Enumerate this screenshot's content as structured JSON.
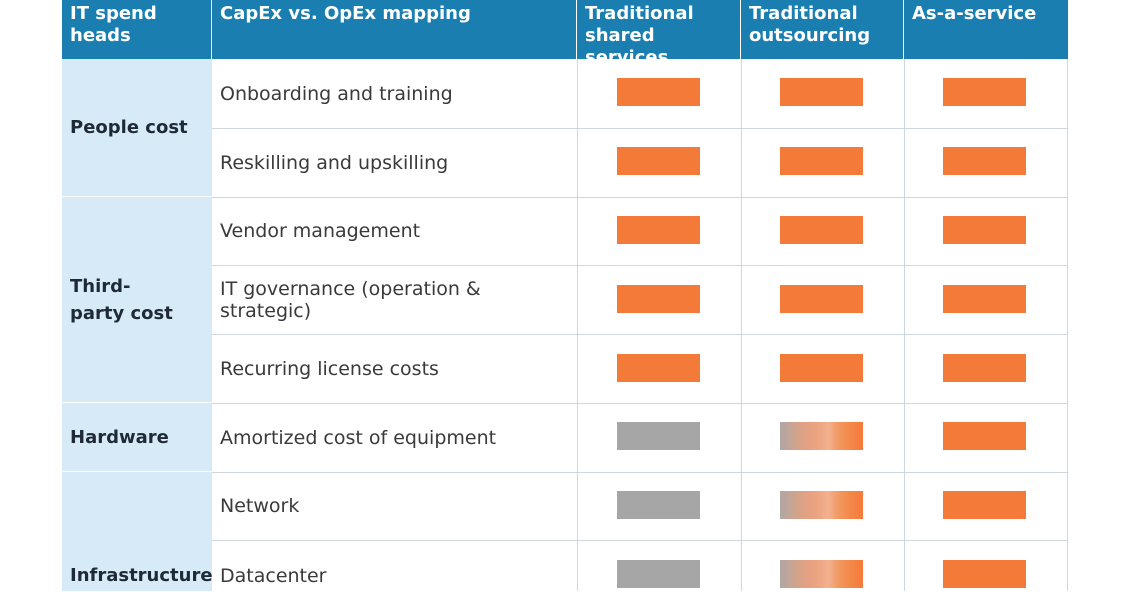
{
  "colors": {
    "header_bg": "#1a7fb0",
    "group_bg": "#d6ebf7",
    "opex": "#f47a3a",
    "capex": "#a6a6a6"
  },
  "headers": {
    "spend_heads": "IT spend heads",
    "mapping": "CapEx vs. OpEx mapping",
    "model1": "Traditional shared services",
    "model2": "Traditional outsourcing",
    "model3": "As-a-service"
  },
  "groups": {
    "people": "People cost",
    "third_party": "Third-party cost",
    "hardware": "Hardware",
    "infrastructure": "Infrastructure"
  },
  "rows": [
    {
      "label": "Onboarding and training",
      "cells": [
        "opex",
        "opex",
        "opex"
      ]
    },
    {
      "label": "Reskilling and upskilling",
      "cells": [
        "opex",
        "opex",
        "opex"
      ]
    },
    {
      "label": "Vendor management",
      "cells": [
        "opex",
        "opex",
        "opex"
      ]
    },
    {
      "label": "IT governance (operation & strategic)",
      "cells": [
        "opex",
        "opex",
        "opex"
      ]
    },
    {
      "label": "Recurring license costs",
      "cells": [
        "opex",
        "opex",
        "opex"
      ]
    },
    {
      "label": "Amortized cost of equipment",
      "cells": [
        "capex",
        "mixed",
        "opex"
      ]
    },
    {
      "label": "Network",
      "cells": [
        "capex",
        "mixed",
        "opex"
      ]
    },
    {
      "label": "Datacenter",
      "cells": [
        "capex",
        "mixed",
        "opex"
      ]
    }
  ]
}
